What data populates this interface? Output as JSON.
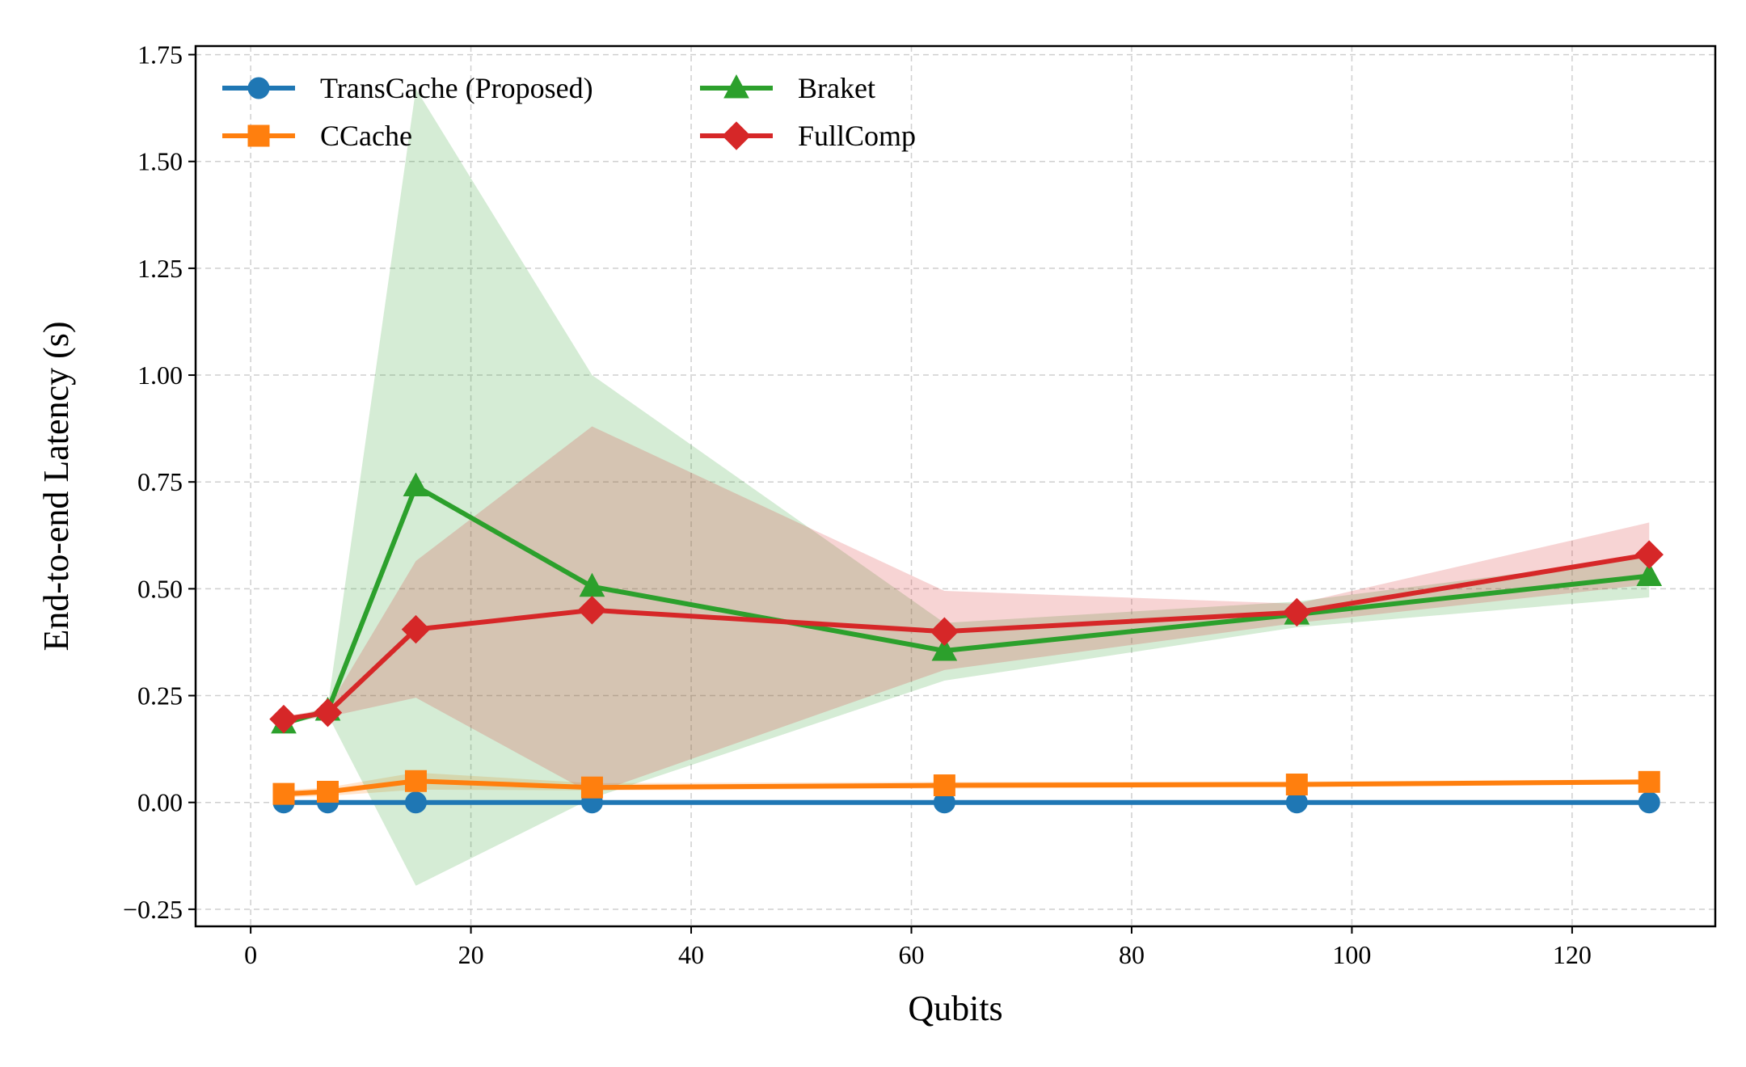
{
  "chart_data": {
    "type": "line",
    "title": "",
    "xlabel": "Qubits",
    "ylabel": "End-to-end Latency (s)",
    "xlim": [
      -5,
      133
    ],
    "ylim": [
      -0.29,
      1.77
    ],
    "x_ticks": [
      0,
      20,
      40,
      60,
      80,
      100,
      120
    ],
    "x_tick_labels": [
      "0",
      "20",
      "40",
      "60",
      "80",
      "100",
      "120"
    ],
    "y_ticks": [
      -0.25,
      0.0,
      0.25,
      0.5,
      0.75,
      1.0,
      1.25,
      1.5,
      1.75
    ],
    "y_tick_labels": [
      "−0.25",
      "0.00",
      "0.25",
      "0.50",
      "0.75",
      "1.00",
      "1.25",
      "1.50",
      "1.75"
    ],
    "grid": true,
    "legend_position": "top-left",
    "legend_columns": 2,
    "x": [
      3,
      7,
      15,
      31,
      63,
      95,
      127
    ],
    "series": [
      {
        "name": "TransCache (Proposed)",
        "color": "#1f77b4",
        "marker": "circle",
        "values": [
          0.0,
          0.0,
          0.0,
          0.0,
          0.0,
          0.0,
          0.0
        ],
        "band_lower": [
          0.0,
          0.0,
          0.0,
          0.0,
          0.0,
          0.0,
          0.0
        ],
        "band_upper": [
          0.0,
          0.0,
          0.0,
          0.0,
          0.0,
          0.0,
          0.0
        ]
      },
      {
        "name": "CCache",
        "color": "#ff7f0e",
        "marker": "square",
        "values": [
          0.02,
          0.025,
          0.05,
          0.035,
          0.04,
          0.042,
          0.048
        ],
        "band_lower": [
          0.012,
          0.015,
          0.03,
          0.028,
          0.032,
          0.036,
          0.042
        ],
        "band_upper": [
          0.028,
          0.035,
          0.07,
          0.045,
          0.048,
          0.049,
          0.054
        ]
      },
      {
        "name": "Braket",
        "color": "#2ca02c",
        "marker": "triangle",
        "values": [
          0.185,
          0.215,
          0.74,
          0.505,
          0.355,
          0.44,
          0.53
        ],
        "band_lower": [
          0.18,
          0.205,
          -0.195,
          0.01,
          0.285,
          0.41,
          0.48
        ],
        "band_upper": [
          0.19,
          0.225,
          1.67,
          1.0,
          0.42,
          0.47,
          0.575
        ]
      },
      {
        "name": "FullComp",
        "color": "#d62728",
        "marker": "diamond",
        "values": [
          0.195,
          0.21,
          0.405,
          0.45,
          0.4,
          0.445,
          0.58
        ],
        "band_lower": [
          0.19,
          0.2,
          0.245,
          0.02,
          0.31,
          0.42,
          0.51
        ],
        "band_upper": [
          0.2,
          0.22,
          0.565,
          0.88,
          0.495,
          0.465,
          0.655
        ]
      }
    ]
  }
}
